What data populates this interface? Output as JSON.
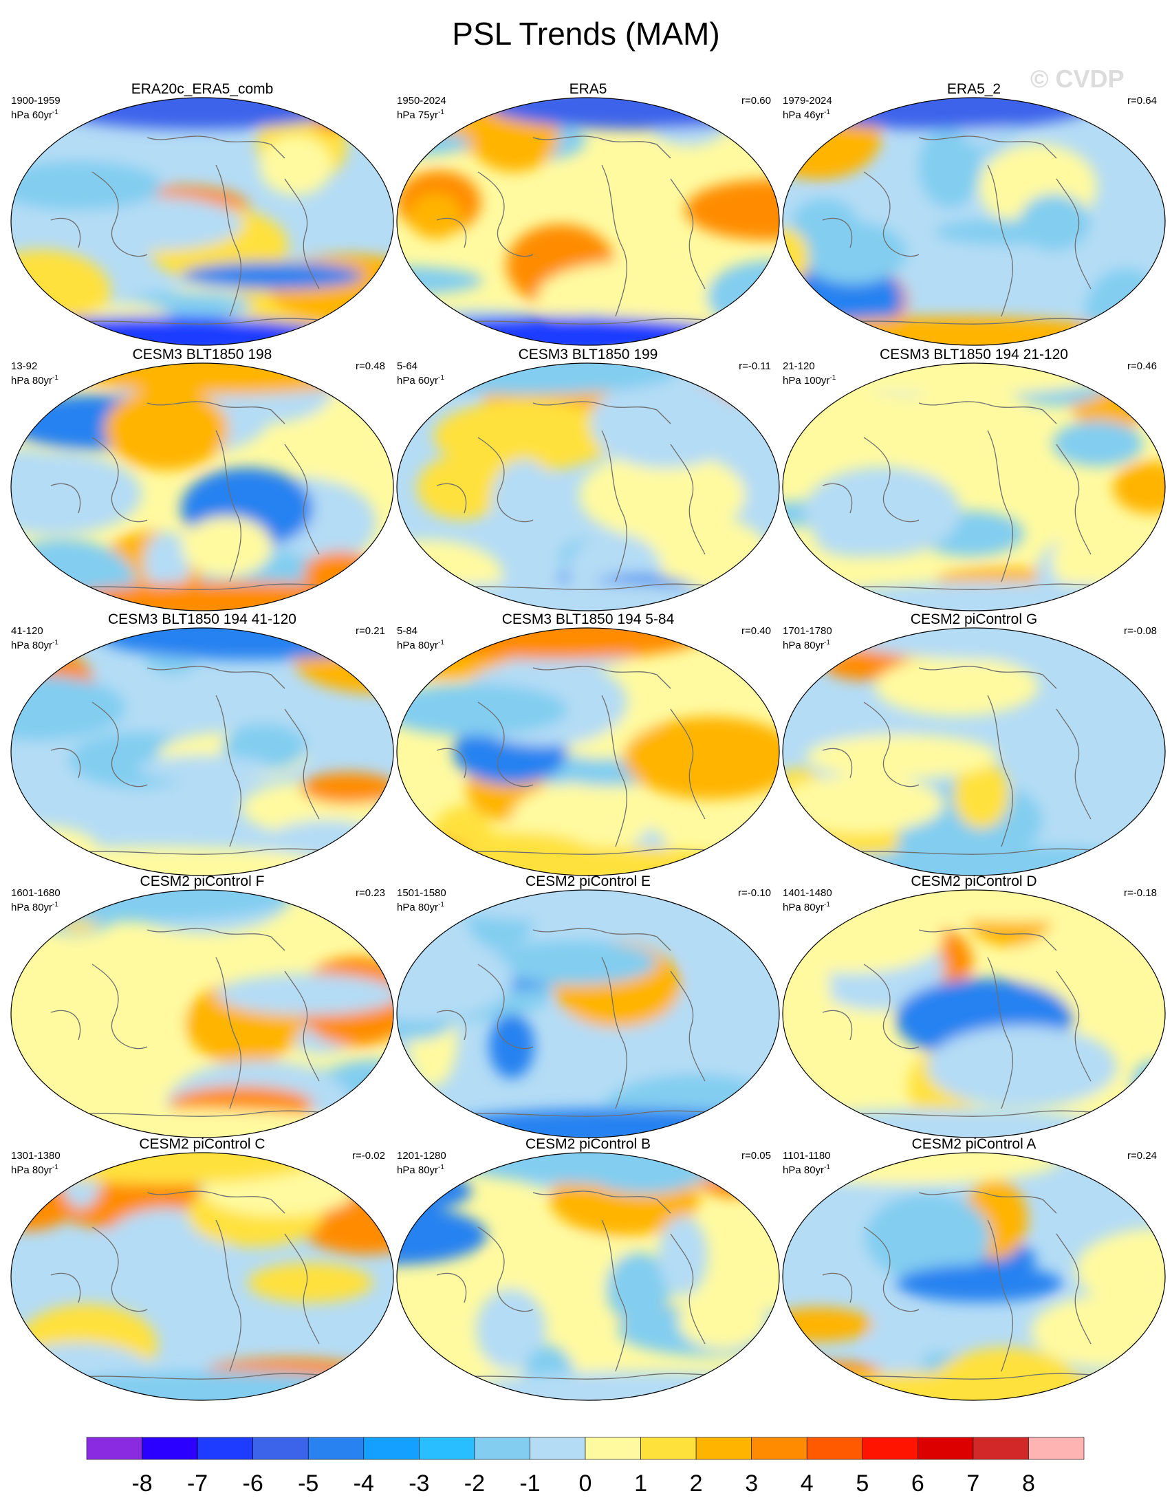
{
  "title": "PSL Trends (MAM)",
  "watermark": "© CVDP",
  "colorbar": {
    "labels": [
      "-8",
      "-7",
      "-6",
      "-5",
      "-4",
      "-3",
      "-2",
      "-1",
      "0",
      "1",
      "2",
      "3",
      "4",
      "5",
      "6",
      "7",
      "8"
    ],
    "colors": [
      "#8a2be2",
      "#2b00ff",
      "#1e3cff",
      "#3c64eb",
      "#2882f0",
      "#14a0ff",
      "#28beff",
      "#82cdf0",
      "#b4dcf5",
      "#fffaa0",
      "#ffe13c",
      "#ffb400",
      "#ff8c00",
      "#ff5a00",
      "#ff1400",
      "#dc0000",
      "#d22828",
      "#ffb4b4"
    ]
  },
  "panels": [
    {
      "title": "ERA20c_ERA5_comb",
      "period": "1900-1959",
      "units": "hPa 60yr",
      "r": ""
    },
    {
      "title": "ERA5",
      "period": "1950-2024",
      "units": "hPa 75yr",
      "r": "r=0.60"
    },
    {
      "title": "ERA5_2",
      "period": "1979-2024",
      "units": "hPa 46yr",
      "r": "r=0.64"
    },
    {
      "title": "CESM3 BLT1850 198",
      "period": "13-92",
      "units": "hPa 80yr",
      "r": "r=0.48"
    },
    {
      "title": "CESM3 BLT1850 199",
      "period": "5-64",
      "units": "hPa 60yr",
      "r": "r=-0.11"
    },
    {
      "title": "CESM3 BLT1850 194 21-120",
      "period": "21-120",
      "units": "hPa 100yr",
      "r": "r=0.46"
    },
    {
      "title": "CESM3 BLT1850 194 41-120",
      "period": "41-120",
      "units": "hPa 80yr",
      "r": "r=0.21"
    },
    {
      "title": "CESM3 BLT1850 194 5-84",
      "period": "5-84",
      "units": "hPa 80yr",
      "r": "r=0.40"
    },
    {
      "title": "CESM2 piControl G",
      "period": "1701-1780",
      "units": "hPa 80yr",
      "r": "r=-0.08"
    },
    {
      "title": "CESM2 piControl F",
      "period": "1601-1680",
      "units": "hPa 80yr",
      "r": "r=0.23"
    },
    {
      "title": "CESM2 piControl E",
      "period": "1501-1580",
      "units": "hPa 80yr",
      "r": "r=-0.10"
    },
    {
      "title": "CESM2 piControl D",
      "period": "1401-1480",
      "units": "hPa 80yr",
      "r": "r=-0.18"
    },
    {
      "title": "CESM2 piControl C",
      "period": "1301-1380",
      "units": "hPa 80yr",
      "r": "r=-0.02"
    },
    {
      "title": "CESM2 piControl B",
      "period": "1201-1280",
      "units": "hPa 80yr",
      "r": "r=0.05"
    },
    {
      "title": "CESM2 piControl A",
      "period": "1101-1180",
      "units": "hPa 80yr",
      "r": "r=0.24"
    }
  ]
}
